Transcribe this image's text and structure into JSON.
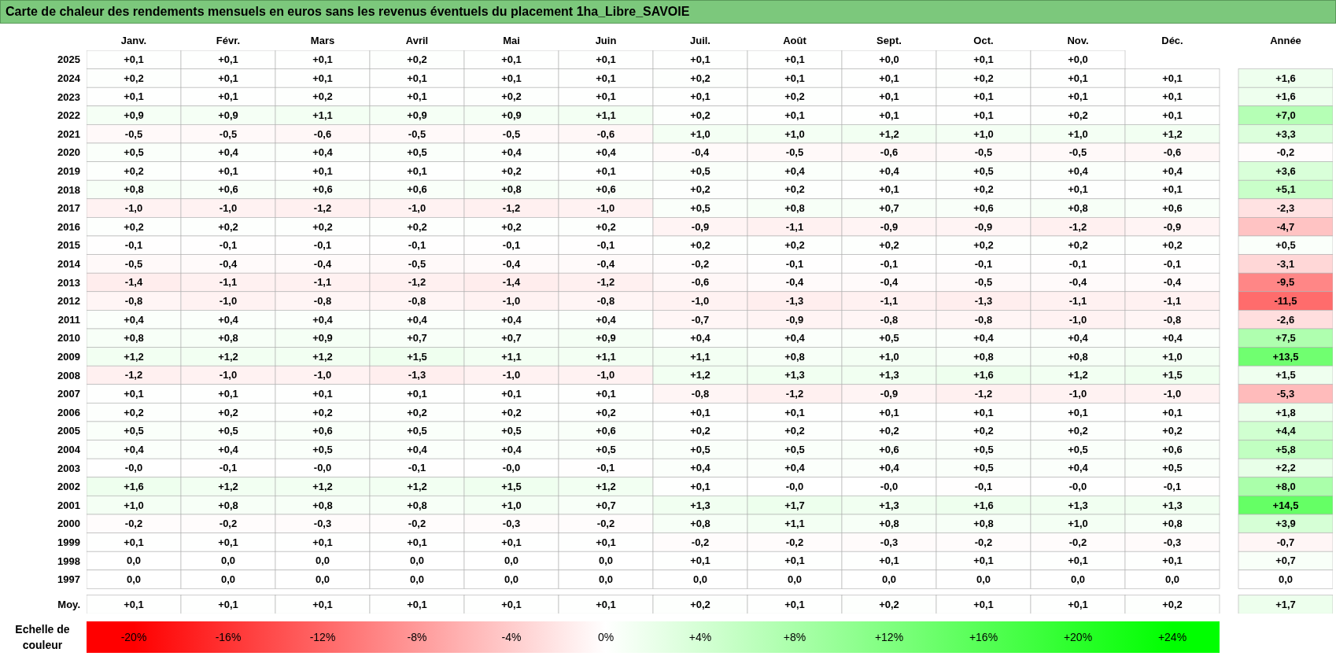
{
  "chart_data": {
    "type": "heatmap",
    "title": "Carte de chaleur des rendements mensuels en euros sans les revenus éventuels du placement 1ha_Libre_SAVOIE",
    "clabel": "Echelle de couleur",
    "clim": [
      -20,
      24
    ],
    "cticks": [
      {
        "value": -20,
        "label": "-20%"
      },
      {
        "value": -16,
        "label": "-16%"
      },
      {
        "value": -12,
        "label": "-12%"
      },
      {
        "value": -8,
        "label": "-8%"
      },
      {
        "value": -4,
        "label": "-4%"
      },
      {
        "value": 0,
        "label": "0%"
      },
      {
        "value": 4,
        "label": "+4%"
      },
      {
        "value": 8,
        "label": "+8%"
      },
      {
        "value": 12,
        "label": "+12%"
      },
      {
        "value": 16,
        "label": "+16%"
      },
      {
        "value": 20,
        "label": "+20%"
      },
      {
        "value": 24,
        "label": "+24%"
      }
    ],
    "categories": [
      "Janv.",
      "Févr.",
      "Mars",
      "Avril",
      "Mai",
      "Juin",
      "Juil.",
      "Août",
      "Sept.",
      "Oct.",
      "Nov.",
      "Déc.",
      "Année"
    ],
    "y_categories": [
      "2025",
      "2024",
      "2023",
      "2022",
      "2021",
      "2020",
      "2019",
      "2018",
      "2017",
      "2016",
      "2015",
      "2014",
      "2013",
      "2012",
      "2011",
      "2010",
      "2009",
      "2008",
      "2007",
      "2006",
      "2005",
      "2004",
      "2003",
      "2002",
      "2001",
      "2000",
      "1999",
      "1998",
      "1997",
      "Moy."
    ],
    "cells": [
      [
        0.1,
        0.1,
        0.1,
        0.2,
        0.1,
        0.1,
        0.1,
        0.1,
        0.0,
        0.1,
        0.0,
        null,
        null
      ],
      [
        0.2,
        0.1,
        0.1,
        0.1,
        0.1,
        0.1,
        0.2,
        0.1,
        0.1,
        0.2,
        0.1,
        0.1,
        1.6
      ],
      [
        0.1,
        0.1,
        0.2,
        0.1,
        0.2,
        0.1,
        0.1,
        0.2,
        0.1,
        0.1,
        0.1,
        0.1,
        1.6
      ],
      [
        0.9,
        0.9,
        1.1,
        0.9,
        0.9,
        1.1,
        0.2,
        0.1,
        0.1,
        0.1,
        0.2,
        0.1,
        7.0
      ],
      [
        -0.5,
        -0.5,
        -0.6,
        -0.5,
        -0.5,
        -0.6,
        1.0,
        1.0,
        1.2,
        1.0,
        1.0,
        1.2,
        3.3
      ],
      [
        0.5,
        0.4,
        0.4,
        0.5,
        0.4,
        0.4,
        -0.4,
        -0.5,
        -0.6,
        -0.5,
        -0.5,
        -0.6,
        -0.2
      ],
      [
        0.2,
        0.1,
        0.1,
        0.1,
        0.2,
        0.1,
        0.5,
        0.4,
        0.4,
        0.5,
        0.4,
        0.4,
        3.6
      ],
      [
        0.8,
        0.6,
        0.6,
        0.6,
        0.8,
        0.6,
        0.2,
        0.2,
        0.1,
        0.2,
        0.1,
        0.1,
        5.1
      ],
      [
        -1.0,
        -1.0,
        -1.2,
        -1.0,
        -1.2,
        -1.0,
        0.5,
        0.8,
        0.7,
        0.6,
        0.8,
        0.6,
        -2.3
      ],
      [
        0.2,
        0.2,
        0.2,
        0.2,
        0.2,
        0.2,
        -0.9,
        -1.1,
        -0.9,
        -0.9,
        -1.2,
        -0.9,
        -4.7
      ],
      [
        -0.1,
        -0.1,
        -0.1,
        -0.1,
        -0.1,
        -0.1,
        0.2,
        0.2,
        0.2,
        0.2,
        0.2,
        0.2,
        0.5
      ],
      [
        -0.5,
        -0.4,
        -0.4,
        -0.5,
        -0.4,
        -0.4,
        -0.2,
        -0.1,
        -0.1,
        -0.1,
        -0.1,
        -0.1,
        -3.1
      ],
      [
        -1.4,
        -1.1,
        -1.1,
        -1.2,
        -1.4,
        -1.2,
        -0.6,
        -0.4,
        -0.4,
        -0.5,
        -0.4,
        -0.4,
        -9.5
      ],
      [
        -0.8,
        -1.0,
        -0.8,
        -0.8,
        -1.0,
        -0.8,
        -1.0,
        -1.3,
        -1.1,
        -1.3,
        -1.1,
        -1.1,
        -11.5
      ],
      [
        0.4,
        0.4,
        0.4,
        0.4,
        0.4,
        0.4,
        -0.7,
        -0.9,
        -0.8,
        -0.8,
        -1.0,
        -0.8,
        -2.6
      ],
      [
        0.8,
        0.8,
        0.9,
        0.7,
        0.7,
        0.9,
        0.4,
        0.4,
        0.5,
        0.4,
        0.4,
        0.4,
        7.5
      ],
      [
        1.2,
        1.2,
        1.2,
        1.5,
        1.1,
        1.1,
        1.1,
        0.8,
        1.0,
        0.8,
        0.8,
        1.0,
        13.5
      ],
      [
        -1.2,
        -1.0,
        -1.0,
        -1.3,
        -1.0,
        -1.0,
        1.2,
        1.3,
        1.3,
        1.6,
        1.2,
        1.5,
        1.5
      ],
      [
        0.1,
        0.1,
        0.1,
        0.1,
        0.1,
        0.1,
        -0.8,
        -1.2,
        -0.9,
        -1.2,
        -1.0,
        -1.0,
        -5.3
      ],
      [
        0.2,
        0.2,
        0.2,
        0.2,
        0.2,
        0.2,
        0.1,
        0.1,
        0.1,
        0.1,
        0.1,
        0.1,
        1.8
      ],
      [
        0.5,
        0.5,
        0.6,
        0.5,
        0.5,
        0.6,
        0.2,
        0.2,
        0.2,
        0.2,
        0.2,
        0.2,
        4.4
      ],
      [
        0.4,
        0.4,
        0.5,
        0.4,
        0.4,
        0.5,
        0.5,
        0.5,
        0.6,
        0.5,
        0.5,
        0.6,
        5.8
      ],
      [
        -0.0,
        -0.1,
        -0.0,
        -0.1,
        -0.0,
        -0.1,
        0.4,
        0.4,
        0.4,
        0.5,
        0.4,
        0.5,
        2.2
      ],
      [
        1.6,
        1.2,
        1.2,
        1.2,
        1.5,
        1.2,
        0.1,
        -0.0,
        -0.0,
        -0.1,
        -0.0,
        -0.1,
        8.0
      ],
      [
        1.0,
        0.8,
        0.8,
        0.8,
        1.0,
        0.7,
        1.3,
        1.7,
        1.3,
        1.6,
        1.3,
        1.3,
        14.5
      ],
      [
        -0.2,
        -0.2,
        -0.3,
        -0.2,
        -0.3,
        -0.2,
        0.8,
        1.1,
        0.8,
        0.8,
        1.0,
        0.8,
        3.9
      ],
      [
        0.1,
        0.1,
        0.1,
        0.1,
        0.1,
        0.1,
        -0.2,
        -0.2,
        -0.3,
        -0.2,
        -0.2,
        -0.3,
        -0.7
      ],
      [
        0.0,
        0.0,
        0.0,
        0.0,
        0.0,
        0.0,
        0.1,
        0.1,
        0.1,
        0.1,
        0.1,
        0.1,
        0.7
      ],
      [
        0.0,
        0.0,
        0.0,
        0.0,
        0.0,
        0.0,
        0.0,
        0.0,
        0.0,
        0.0,
        0.0,
        0.0,
        0.0
      ],
      [
        0.1,
        0.1,
        0.1,
        0.1,
        0.1,
        0.1,
        0.2,
        0.1,
        0.2,
        0.1,
        0.1,
        0.2,
        1.7
      ]
    ],
    "cell_labels": [
      [
        "+0,1",
        "+0,1",
        "+0,1",
        "+0,2",
        "+0,1",
        "+0,1",
        "+0,1",
        "+0,1",
        "+0,0",
        "+0,1",
        "+0,0",
        null,
        null
      ],
      [
        "+0,2",
        "+0,1",
        "+0,1",
        "+0,1",
        "+0,1",
        "+0,1",
        "+0,2",
        "+0,1",
        "+0,1",
        "+0,2",
        "+0,1",
        "+0,1",
        "+1,6"
      ],
      [
        "+0,1",
        "+0,1",
        "+0,2",
        "+0,1",
        "+0,2",
        "+0,1",
        "+0,1",
        "+0,2",
        "+0,1",
        "+0,1",
        "+0,1",
        "+0,1",
        "+1,6"
      ],
      [
        "+0,9",
        "+0,9",
        "+1,1",
        "+0,9",
        "+0,9",
        "+1,1",
        "+0,2",
        "+0,1",
        "+0,1",
        "+0,1",
        "+0,2",
        "+0,1",
        "+7,0"
      ],
      [
        "-0,5",
        "-0,5",
        "-0,6",
        "-0,5",
        "-0,5",
        "-0,6",
        "+1,0",
        "+1,0",
        "+1,2",
        "+1,0",
        "+1,0",
        "+1,2",
        "+3,3"
      ],
      [
        "+0,5",
        "+0,4",
        "+0,4",
        "+0,5",
        "+0,4",
        "+0,4",
        "-0,4",
        "-0,5",
        "-0,6",
        "-0,5",
        "-0,5",
        "-0,6",
        "-0,2"
      ],
      [
        "+0,2",
        "+0,1",
        "+0,1",
        "+0,1",
        "+0,2",
        "+0,1",
        "+0,5",
        "+0,4",
        "+0,4",
        "+0,5",
        "+0,4",
        "+0,4",
        "+3,6"
      ],
      [
        "+0,8",
        "+0,6",
        "+0,6",
        "+0,6",
        "+0,8",
        "+0,6",
        "+0,2",
        "+0,2",
        "+0,1",
        "+0,2",
        "+0,1",
        "+0,1",
        "+5,1"
      ],
      [
        "-1,0",
        "-1,0",
        "-1,2",
        "-1,0",
        "-1,2",
        "-1,0",
        "+0,5",
        "+0,8",
        "+0,7",
        "+0,6",
        "+0,8",
        "+0,6",
        "-2,3"
      ],
      [
        "+0,2",
        "+0,2",
        "+0,2",
        "+0,2",
        "+0,2",
        "+0,2",
        "-0,9",
        "-1,1",
        "-0,9",
        "-0,9",
        "-1,2",
        "-0,9",
        "-4,7"
      ],
      [
        "-0,1",
        "-0,1",
        "-0,1",
        "-0,1",
        "-0,1",
        "-0,1",
        "+0,2",
        "+0,2",
        "+0,2",
        "+0,2",
        "+0,2",
        "+0,2",
        "+0,5"
      ],
      [
        "-0,5",
        "-0,4",
        "-0,4",
        "-0,5",
        "-0,4",
        "-0,4",
        "-0,2",
        "-0,1",
        "-0,1",
        "-0,1",
        "-0,1",
        "-0,1",
        "-3,1"
      ],
      [
        "-1,4",
        "-1,1",
        "-1,1",
        "-1,2",
        "-1,4",
        "-1,2",
        "-0,6",
        "-0,4",
        "-0,4",
        "-0,5",
        "-0,4",
        "-0,4",
        "-9,5"
      ],
      [
        "-0,8",
        "-1,0",
        "-0,8",
        "-0,8",
        "-1,0",
        "-0,8",
        "-1,0",
        "-1,3",
        "-1,1",
        "-1,3",
        "-1,1",
        "-1,1",
        "-11,5"
      ],
      [
        "+0,4",
        "+0,4",
        "+0,4",
        "+0,4",
        "+0,4",
        "+0,4",
        "-0,7",
        "-0,9",
        "-0,8",
        "-0,8",
        "-1,0",
        "-0,8",
        "-2,6"
      ],
      [
        "+0,8",
        "+0,8",
        "+0,9",
        "+0,7",
        "+0,7",
        "+0,9",
        "+0,4",
        "+0,4",
        "+0,5",
        "+0,4",
        "+0,4",
        "+0,4",
        "+7,5"
      ],
      [
        "+1,2",
        "+1,2",
        "+1,2",
        "+1,5",
        "+1,1",
        "+1,1",
        "+1,1",
        "+0,8",
        "+1,0",
        "+0,8",
        "+0,8",
        "+1,0",
        "+13,5"
      ],
      [
        "-1,2",
        "-1,0",
        "-1,0",
        "-1,3",
        "-1,0",
        "-1,0",
        "+1,2",
        "+1,3",
        "+1,3",
        "+1,6",
        "+1,2",
        "+1,5",
        "+1,5"
      ],
      [
        "+0,1",
        "+0,1",
        "+0,1",
        "+0,1",
        "+0,1",
        "+0,1",
        "-0,8",
        "-1,2",
        "-0,9",
        "-1,2",
        "-1,0",
        "-1,0",
        "-5,3"
      ],
      [
        "+0,2",
        "+0,2",
        "+0,2",
        "+0,2",
        "+0,2",
        "+0,2",
        "+0,1",
        "+0,1",
        "+0,1",
        "+0,1",
        "+0,1",
        "+0,1",
        "+1,8"
      ],
      [
        "+0,5",
        "+0,5",
        "+0,6",
        "+0,5",
        "+0,5",
        "+0,6",
        "+0,2",
        "+0,2",
        "+0,2",
        "+0,2",
        "+0,2",
        "+0,2",
        "+4,4"
      ],
      [
        "+0,4",
        "+0,4",
        "+0,5",
        "+0,4",
        "+0,4",
        "+0,5",
        "+0,5",
        "+0,5",
        "+0,6",
        "+0,5",
        "+0,5",
        "+0,6",
        "+5,8"
      ],
      [
        "-0,0",
        "-0,1",
        "-0,0",
        "-0,1",
        "-0,0",
        "-0,1",
        "+0,4",
        "+0,4",
        "+0,4",
        "+0,5",
        "+0,4",
        "+0,5",
        "+2,2"
      ],
      [
        "+1,6",
        "+1,2",
        "+1,2",
        "+1,2",
        "+1,5",
        "+1,2",
        "+0,1",
        "-0,0",
        "-0,0",
        "-0,1",
        "-0,0",
        "-0,1",
        "+8,0"
      ],
      [
        "+1,0",
        "+0,8",
        "+0,8",
        "+0,8",
        "+1,0",
        "+0,7",
        "+1,3",
        "+1,7",
        "+1,3",
        "+1,6",
        "+1,3",
        "+1,3",
        "+14,5"
      ],
      [
        "-0,2",
        "-0,2",
        "-0,3",
        "-0,2",
        "-0,3",
        "-0,2",
        "+0,8",
        "+1,1",
        "+0,8",
        "+0,8",
        "+1,0",
        "+0,8",
        "+3,9"
      ],
      [
        "+0,1",
        "+0,1",
        "+0,1",
        "+0,1",
        "+0,1",
        "+0,1",
        "-0,2",
        "-0,2",
        "-0,3",
        "-0,2",
        "-0,2",
        "-0,3",
        "-0,7"
      ],
      [
        "0,0",
        "0,0",
        "0,0",
        "0,0",
        "0,0",
        "0,0",
        "+0,1",
        "+0,1",
        "+0,1",
        "+0,1",
        "+0,1",
        "+0,1",
        "+0,7"
      ],
      [
        "0,0",
        "0,0",
        "0,0",
        "0,0",
        "0,0",
        "0,0",
        "0,0",
        "0,0",
        "0,0",
        "0,0",
        "0,0",
        "0,0",
        "0,0"
      ],
      [
        "+0,1",
        "+0,1",
        "+0,1",
        "+0,1",
        "+0,1",
        "+0,1",
        "+0,2",
        "+0,1",
        "+0,2",
        "+0,1",
        "+0,1",
        "+0,2",
        "+1,7"
      ]
    ]
  }
}
